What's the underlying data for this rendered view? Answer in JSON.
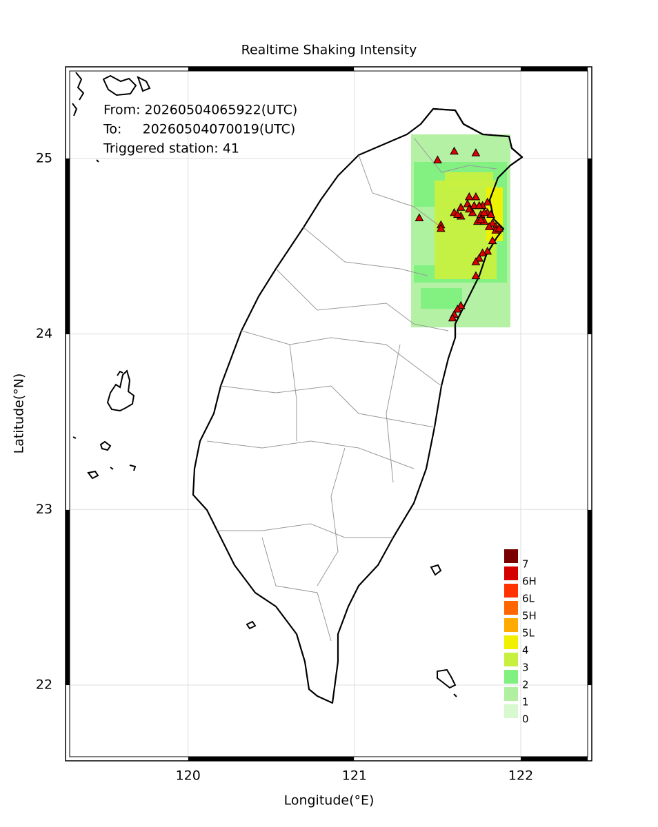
{
  "map": {
    "type": "station-map",
    "title": "Realtime Shaking Intensity",
    "info": [
      "From: 20260504065922(UTC)",
      "To:     20260504070019(UTC)",
      "Triggered station: 41"
    ],
    "xlabel": "Longitude(°E)",
    "ylabel": "Latitude(°N)",
    "xlim": [
      119.263,
      122.427
    ],
    "ylim": [
      21.568,
      25.522
    ],
    "xticks": [
      120,
      121,
      122
    ],
    "yticks": [
      22,
      23,
      24,
      25
    ],
    "grid": true,
    "station_color": "#e00000",
    "legend": {
      "levels": [
        "7",
        "6H",
        "6L",
        "5H",
        "5L",
        "4",
        "3",
        "2",
        "1",
        "0"
      ],
      "colors": [
        "#7a0000",
        "#d40000",
        "#ff3300",
        "#ff6600",
        "#ffaa00",
        "#f0f000",
        "#c8f040",
        "#80f080",
        "#b0f0a0",
        "#d8f8d0"
      ]
    },
    "stations": {
      "lon": [
        121.5,
        121.6,
        121.73,
        121.39,
        121.52,
        121.52,
        121.69,
        121.73,
        121.8,
        121.77,
        121.68,
        121.64,
        121.6,
        121.64,
        121.71,
        121.76,
        121.8,
        121.82,
        121.74,
        121.78,
        121.83,
        121.85,
        121.85,
        121.83,
        121.8,
        121.77,
        121.75,
        121.73,
        121.73,
        121.64,
        121.62,
        121.6,
        121.59,
        121.72,
        121.75,
        121.69,
        121.62,
        121.78,
        121.81,
        121.87,
        121.76
      ],
      "lat": [
        24.99,
        25.04,
        25.03,
        24.66,
        24.62,
        24.6,
        24.78,
        24.78,
        24.75,
        24.73,
        24.74,
        24.72,
        24.69,
        24.67,
        24.69,
        24.68,
        24.69,
        24.68,
        24.64,
        24.64,
        24.63,
        24.61,
        24.59,
        24.53,
        24.47,
        24.46,
        24.43,
        24.41,
        24.33,
        24.16,
        24.14,
        24.11,
        24.09,
        24.73,
        24.73,
        24.71,
        24.68,
        24.69,
        24.61,
        24.6,
        24.65
      ]
    }
  }
}
